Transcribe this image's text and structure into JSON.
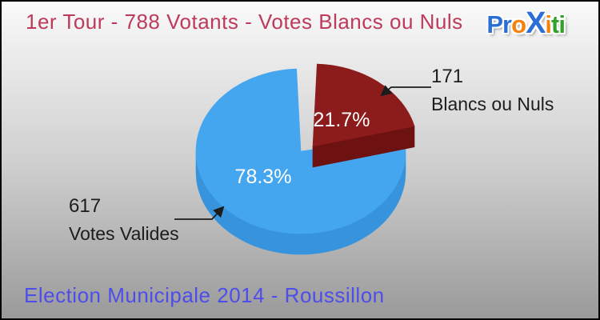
{
  "header": {
    "title": "1er Tour - 788 Votants - Votes Blancs ou Nuls",
    "color": "#be3a5a"
  },
  "logo": {
    "name": "Proxiti",
    "letters": [
      {
        "ch": "P",
        "color": "#2a6fd6"
      },
      {
        "ch": "r",
        "color": "#2a6fd6"
      },
      {
        "ch": "o",
        "color": "#f5820b"
      },
      {
        "ch": "X",
        "color": "#2a6fd6",
        "large": true
      },
      {
        "ch": "i",
        "color": "#f5820b"
      },
      {
        "ch": "t",
        "color": "#33a02c"
      },
      {
        "ch": "i",
        "color": "#33a02c"
      }
    ]
  },
  "footer": {
    "title": "Election Municipale 2014 - Roussillon",
    "color": "#4d4deb"
  },
  "chart_data": {
    "type": "pie",
    "title": "1er Tour - 788 Votants - Votes Blancs ou Nuls",
    "total_votants": 788,
    "legend_position": "callouts",
    "slices": [
      {
        "label": "Votes Valides",
        "value": 617,
        "pct": 78.3,
        "pct_label": "78.3%",
        "color": "#45a6f0",
        "side_color": "#3794dc",
        "exploded": false
      },
      {
        "label": "Blancs ou Nuls",
        "value": 171,
        "pct": 21.7,
        "pct_label": "21.7%",
        "color": "#8c1c1c",
        "side_color": "#6e1111",
        "exploded": true
      }
    ]
  }
}
